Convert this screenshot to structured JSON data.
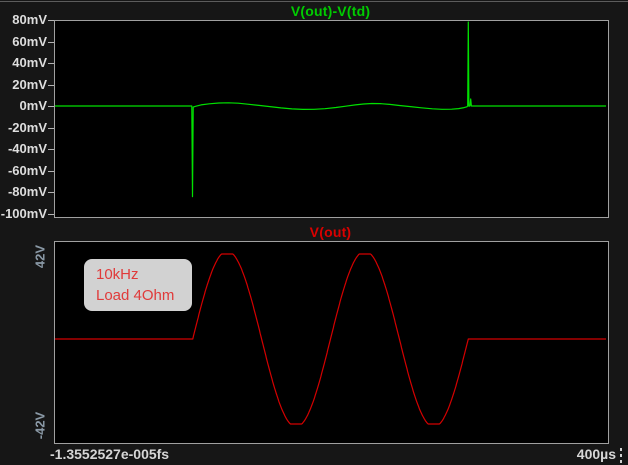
{
  "ui": {
    "status_left": "-1.3552527e-005fs",
    "x_axis_end_label": "400µs",
    "background_color": "#161616",
    "pane_background": "#000000",
    "pane_border_color": "#a0a0a0",
    "axis_text_color": "#dedede",
    "rotated_label_color": "#8a99a6"
  },
  "chart_data": [
    {
      "type": "line",
      "title": "V(out)-V(td)",
      "title_color": "#00cc00",
      "ylabel": "",
      "xlabel": "",
      "ylim_mv": [
        -100,
        80
      ],
      "xlim_us": [
        0,
        400
      ],
      "y_tick_labels": [
        "80mV",
        "60mV",
        "40mV",
        "20mV",
        "0mV",
        "-20mV",
        "-40mV",
        "-60mV",
        "-80mV",
        "-100mV"
      ],
      "grid": false,
      "legend": "none",
      "series": [
        {
          "name": "V(out)-V(td)",
          "color": "#00e000",
          "units": [
            "us",
            "mV"
          ],
          "points": [
            [
              0,
              0
            ],
            [
              99.3,
              0
            ],
            [
              99.8,
              -84
            ],
            [
              100.3,
              -1
            ],
            [
              102,
              -0.3
            ],
            [
              106,
              1
            ],
            [
              112,
              2
            ],
            [
              119,
              2.8
            ],
            [
              126,
              3
            ],
            [
              133,
              2.6
            ],
            [
              140,
              1.7
            ],
            [
              148,
              0.6
            ],
            [
              156,
              -0.6
            ],
            [
              164,
              -1.8
            ],
            [
              172,
              -2.7
            ],
            [
              180,
              -3.2
            ],
            [
              188,
              -3.1
            ],
            [
              196,
              -2.5
            ],
            [
              204,
              -1.4
            ],
            [
              211,
              -0.2
            ],
            [
              218,
              1
            ],
            [
              224,
              1.9
            ],
            [
              230,
              2.3
            ],
            [
              236,
              2.2
            ],
            [
              243,
              1.5
            ],
            [
              250,
              0.5
            ],
            [
              258,
              -0.6
            ],
            [
              266,
              -1.7
            ],
            [
              274,
              -2.6
            ],
            [
              281,
              -3.1
            ],
            [
              288,
              -3
            ],
            [
              293,
              -2.4
            ],
            [
              297,
              -1.5
            ],
            [
              299,
              -0.7
            ],
            [
              299.6,
              0
            ],
            [
              300,
              80
            ],
            [
              300.5,
              -0.2
            ],
            [
              301.3,
              0
            ],
            [
              301.8,
              6.5
            ],
            [
              302.3,
              0
            ],
            [
              310,
              0
            ],
            [
              400,
              0
            ]
          ]
        }
      ]
    },
    {
      "type": "line",
      "title": "V(out)",
      "title_color": "#d90000",
      "ylabel": "",
      "xlabel": "",
      "y_axis_labels": [
        "42V",
        "-42V"
      ],
      "xlim_us": [
        0,
        400
      ],
      "x_axis_first_label": "-1.3552527e-005fs",
      "x_axis_last_label": "400µs",
      "grid": false,
      "legend": "none",
      "annotation": [
        "10kHz",
        "Load 4Ohm"
      ],
      "series": [
        {
          "name": "V(out)",
          "color": "#d40000",
          "units": [
            "us",
            "V"
          ],
          "signal": {
            "flat_v": 0,
            "burst_start_us": 100,
            "burst_end_us": 300,
            "frequency_hz": 10000,
            "amplitude_v": 42,
            "cycles": 2
          }
        }
      ]
    }
  ]
}
